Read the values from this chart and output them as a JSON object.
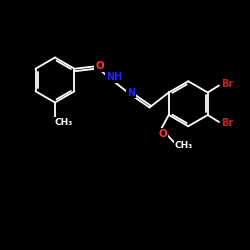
{
  "background_color": "#000000",
  "bond_color": "#ffffff",
  "atom_colors": {
    "C": "#ffffff",
    "N": "#2222ff",
    "O": "#ff3333",
    "Br": "#cc2222",
    "H": "#ffffff"
  },
  "bond_width": 1.3,
  "figsize": [
    2.5,
    2.5
  ],
  "dpi": 100,
  "font_size": 7.0,
  "xlim": [
    0,
    10
  ],
  "ylim": [
    0,
    10
  ]
}
